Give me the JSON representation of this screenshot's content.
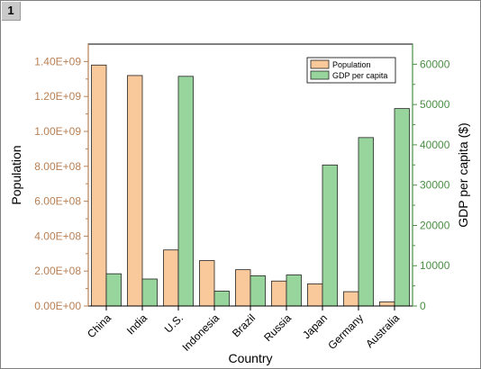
{
  "page": {
    "tab_number": "1"
  },
  "chart_data": {
    "type": "bar",
    "categories": [
      "China",
      "India",
      "U.S.",
      "Indonesia",
      "Brazil",
      "Russia",
      "Japan",
      "Germany",
      "Australia"
    ],
    "xlabel": "Country",
    "series": [
      {
        "name": "Population",
        "axis": "left",
        "color": "#f9c89b",
        "values": [
          1380000000.0,
          1320000000.0,
          321000000.0,
          260000000.0,
          208000000.0,
          143000000.0,
          127000000.0,
          82000000.0,
          24000000.0
        ]
      },
      {
        "name": "GDP per capita",
        "axis": "right",
        "color": "#98d59c",
        "values": [
          8000,
          6700,
          57000,
          3700,
          7500,
          7700,
          35000,
          41800,
          49000
        ]
      }
    ],
    "left_axis": {
      "label": "Population",
      "min": 0,
      "max": 1500000000.0,
      "ticks": [
        0,
        200000000.0,
        400000000.0,
        600000000.0,
        800000000.0,
        1000000000.0,
        1200000000.0,
        1400000000.0
      ],
      "tick_labels": [
        "0.00E+00",
        "2.00E+08",
        "4.00E+08",
        "6.00E+08",
        "8.00E+08",
        "1.00E+09",
        "1.20E+09",
        "1.40E+09"
      ],
      "color": "#b88055"
    },
    "right_axis": {
      "label": "GDP per capita ($)",
      "min": 0,
      "max": 65000,
      "ticks": [
        0,
        10000,
        20000,
        30000,
        40000,
        50000,
        60000
      ],
      "tick_labels": [
        "0",
        "10000",
        "20000",
        "30000",
        "40000",
        "50000",
        "60000"
      ],
      "color": "#4b8f45"
    },
    "legend": {
      "placement": "top-right"
    }
  }
}
